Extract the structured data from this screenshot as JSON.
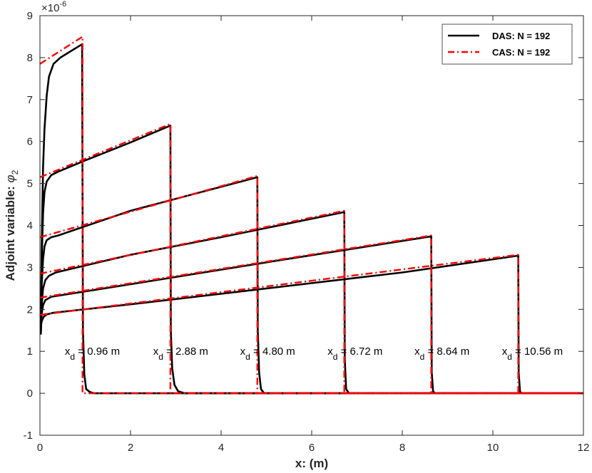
{
  "chart_data": {
    "type": "line",
    "exponent_label": "×10",
    "exponent_power": "-6",
    "xlabel": "x: (m)",
    "ylabel_text": "Adjoint variable: ",
    "ylabel_symbol": "φ",
    "ylabel_sub": "2",
    "xlim": [
      0,
      12
    ],
    "ylim": [
      -1,
      9
    ],
    "xticks": [
      "0",
      "2",
      "4",
      "6",
      "8",
      "10",
      "12"
    ],
    "yticks": [
      "-1",
      "0",
      "1",
      "2",
      "3",
      "4",
      "5",
      "6",
      "7",
      "8",
      "9"
    ],
    "legend_position": "top-right",
    "legend": [
      {
        "label": "DAS: N = 192",
        "color": "#000000",
        "style": "solid"
      },
      {
        "label": "CAS: N = 192",
        "color": "#ff0000",
        "style": "dash-dot"
      }
    ],
    "cases": [
      {
        "xd": 0.96,
        "annot_prefix": "x",
        "annot_sub": "d",
        "annot_value": " = 0.96 m",
        "annot_x": 0.55,
        "annot_y": 1.0,
        "das": [
          [
            0.02,
            1.4
          ],
          [
            0.04,
            3.5
          ],
          [
            0.07,
            5.4
          ],
          [
            0.1,
            6.3
          ],
          [
            0.15,
            7.1
          ],
          [
            0.2,
            7.55
          ],
          [
            0.3,
            7.85
          ],
          [
            0.45,
            8.0
          ],
          [
            0.6,
            8.1
          ],
          [
            0.75,
            8.2
          ],
          [
            0.93,
            8.32
          ],
          [
            0.95,
            1.5
          ],
          [
            0.98,
            0.45
          ],
          [
            1.02,
            0.1
          ],
          [
            1.1,
            0.03
          ],
          [
            1.2,
            0.0
          ],
          [
            12,
            0.0
          ]
        ],
        "cas": [
          [
            0.0,
            7.85
          ],
          [
            0.94,
            8.5
          ],
          [
            0.94,
            0.0
          ],
          [
            1.0,
            0.0
          ],
          [
            12,
            0.0
          ]
        ]
      },
      {
        "xd": 2.88,
        "annot_prefix": "x",
        "annot_sub": "d",
        "annot_value": " = 2.88 m",
        "annot_x": 2.5,
        "annot_y": 1.0,
        "das": [
          [
            0.02,
            1.5
          ],
          [
            0.04,
            3.2
          ],
          [
            0.07,
            4.3
          ],
          [
            0.1,
            4.8
          ],
          [
            0.15,
            5.05
          ],
          [
            0.25,
            5.2
          ],
          [
            0.4,
            5.28
          ],
          [
            1.0,
            5.55
          ],
          [
            2.0,
            5.98
          ],
          [
            2.88,
            6.38
          ],
          [
            2.89,
            1.5
          ],
          [
            2.92,
            0.6
          ],
          [
            2.97,
            0.2
          ],
          [
            3.05,
            0.05
          ],
          [
            3.2,
            0.0
          ],
          [
            12,
            0.0
          ]
        ],
        "cas": [
          [
            0.0,
            5.15
          ],
          [
            2.88,
            6.42
          ],
          [
            2.88,
            0.0
          ],
          [
            12,
            0.0
          ]
        ]
      },
      {
        "xd": 4.8,
        "annot_prefix": "x",
        "annot_sub": "d",
        "annot_value": " = 4.80 m",
        "annot_x": 4.42,
        "annot_y": 1.0,
        "das": [
          [
            0.02,
            1.45
          ],
          [
            0.04,
            2.6
          ],
          [
            0.07,
            3.2
          ],
          [
            0.1,
            3.5
          ],
          [
            0.15,
            3.65
          ],
          [
            0.25,
            3.72
          ],
          [
            0.4,
            3.76
          ],
          [
            2.0,
            4.35
          ],
          [
            4.8,
            5.15
          ],
          [
            4.81,
            1.5
          ],
          [
            4.84,
            0.5
          ],
          [
            4.88,
            0.1
          ],
          [
            4.95,
            0.0
          ],
          [
            12,
            0.0
          ]
        ],
        "cas": [
          [
            0.0,
            3.72
          ],
          [
            4.8,
            5.18
          ],
          [
            4.8,
            0.0
          ],
          [
            12,
            0.0
          ]
        ]
      },
      {
        "xd": 6.72,
        "annot_prefix": "x",
        "annot_sub": "d",
        "annot_value": " = 6.72 m",
        "annot_x": 6.35,
        "annot_y": 1.0,
        "das": [
          [
            0.02,
            1.5
          ],
          [
            0.04,
            2.1
          ],
          [
            0.07,
            2.5
          ],
          [
            0.12,
            2.7
          ],
          [
            0.2,
            2.8
          ],
          [
            0.35,
            2.88
          ],
          [
            2.0,
            3.3
          ],
          [
            4.0,
            3.72
          ],
          [
            6.72,
            4.32
          ],
          [
            6.73,
            0.8
          ],
          [
            6.76,
            0.1
          ],
          [
            6.82,
            0.0
          ],
          [
            12,
            0.0
          ]
        ],
        "cas": [
          [
            0.0,
            2.85
          ],
          [
            6.72,
            4.35
          ],
          [
            6.72,
            0.0
          ],
          [
            12,
            0.0
          ]
        ]
      },
      {
        "xd": 8.64,
        "annot_prefix": "x",
        "annot_sub": "d",
        "annot_value": " = 8.64 m",
        "annot_x": 8.27,
        "annot_y": 1.0,
        "das": [
          [
            0.02,
            1.55
          ],
          [
            0.04,
            1.9
          ],
          [
            0.07,
            2.1
          ],
          [
            0.12,
            2.22
          ],
          [
            0.25,
            2.3
          ],
          [
            2.0,
            2.6
          ],
          [
            5.0,
            3.12
          ],
          [
            8.64,
            3.74
          ],
          [
            8.65,
            0.5
          ],
          [
            8.68,
            0.05
          ],
          [
            8.72,
            0.0
          ],
          [
            12,
            0.0
          ]
        ],
        "cas": [
          [
            0.0,
            2.28
          ],
          [
            8.64,
            3.76
          ],
          [
            8.64,
            0.0
          ],
          [
            12,
            0.0
          ]
        ]
      },
      {
        "xd": 10.56,
        "annot_prefix": "x",
        "annot_sub": "d",
        "annot_value": " = 10.56 m",
        "annot_x": 10.2,
        "annot_y": 1.0,
        "das": [
          [
            0.02,
            1.6
          ],
          [
            0.04,
            1.72
          ],
          [
            0.08,
            1.82
          ],
          [
            0.15,
            1.88
          ],
          [
            0.3,
            1.92
          ],
          [
            2.0,
            2.12
          ],
          [
            5.0,
            2.5
          ],
          [
            8.0,
            2.88
          ],
          [
            10.56,
            3.28
          ],
          [
            10.57,
            0.5
          ],
          [
            10.6,
            0.03
          ],
          [
            10.65,
            0.0
          ],
          [
            12,
            0.0
          ]
        ],
        "cas": [
          [
            0.0,
            1.87
          ],
          [
            10.56,
            3.3
          ],
          [
            10.56,
            0.0
          ],
          [
            12,
            0.0
          ]
        ]
      }
    ]
  }
}
